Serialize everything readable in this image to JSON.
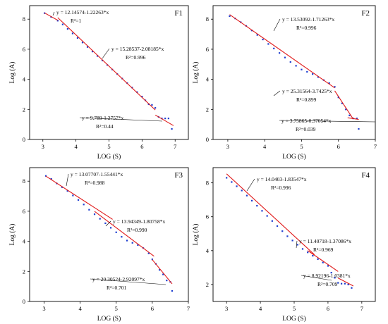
{
  "chart_data": [
    {
      "type": "scatter",
      "panel_label": "F1",
      "xlabel": "LOG (S)",
      "ylabel": "Log (A)",
      "xlim": [
        2.6,
        7.4
      ],
      "ylim": [
        0,
        8.9
      ],
      "xticks": [
        3,
        4,
        5,
        6,
        7
      ],
      "yticks": [
        0,
        2,
        4,
        6,
        8
      ],
      "series": [
        {
          "x": [
            3.05,
            3.25,
            3.45,
            3.6,
            3.75,
            3.9,
            4.05,
            4.2,
            4.35,
            4.5,
            4.65,
            4.8,
            4.95,
            5.1,
            5.25,
            5.4,
            5.55,
            5.7,
            5.85,
            6.0,
            6.1,
            6.2,
            6.3,
            6.4,
            6.5,
            6.6,
            6.7,
            6.8,
            6.9
          ],
          "y": [
            8.4,
            8.15,
            7.9,
            7.65,
            7.35,
            7.05,
            6.75,
            6.45,
            6.15,
            5.85,
            5.55,
            5.25,
            4.95,
            4.65,
            4.35,
            4.05,
            3.75,
            3.45,
            3.15,
            2.85,
            2.6,
            2.35,
            2.3,
            2.1,
            1.5,
            1.4,
            1.4,
            1.4,
            0.7
          ]
        }
      ],
      "fits": [
        {
          "equation": "y = 12.14574-1.22263*x",
          "r2": "R²=1",
          "x_range": [
            3.05,
            3.45
          ]
        },
        {
          "equation": "y = 15.28537-2.08185*x",
          "r2": "R²=0.996",
          "x_range": [
            3.45,
            6.4
          ]
        },
        {
          "equation": "y = 9.789-1.2757*x",
          "r2": "R²=0.44",
          "x_range": [
            6.4,
            6.95
          ]
        }
      ]
    },
    {
      "type": "scatter",
      "panel_label": "F2",
      "xlabel": "LOG (S)",
      "ylabel": "Log (A)",
      "xlim": [
        2.6,
        7.0
      ],
      "ylim": [
        0,
        8.9
      ],
      "xticks": [
        3,
        4,
        5,
        6,
        7
      ],
      "yticks": [
        0,
        2,
        4,
        6,
        8
      ],
      "series": [
        {
          "x": [
            3.05,
            3.2,
            3.35,
            3.5,
            3.65,
            3.8,
            3.95,
            4.1,
            4.25,
            4.4,
            4.55,
            4.7,
            4.85,
            5.0,
            5.15,
            5.3,
            5.45,
            5.6,
            5.75,
            5.9,
            6.0,
            6.1,
            6.2,
            6.3,
            6.4,
            6.5,
            6.55
          ],
          "y": [
            8.2,
            8.05,
            7.8,
            7.55,
            7.25,
            6.95,
            6.65,
            6.35,
            6.05,
            5.75,
            5.45,
            5.15,
            4.9,
            4.65,
            4.5,
            4.35,
            4.15,
            3.95,
            3.75,
            3.5,
            2.8,
            2.4,
            2.0,
            1.6,
            1.4,
            1.4,
            0.7
          ]
        }
      ],
      "fits": [
        {
          "equation": "y = 13.53092-1.71263*x",
          "r2": "R²=0.996",
          "x_range": [
            3.05,
            5.9
          ]
        },
        {
          "equation": "y = 25.31564-3.7425*x",
          "r2": "R²=0.899",
          "x_range": [
            5.9,
            6.4
          ]
        },
        {
          "equation": "y = 3.75865-0.37054*x",
          "r2": "R²=0.039",
          "x_range": [
            6.25,
            6.55
          ]
        }
      ]
    },
    {
      "type": "scatter",
      "panel_label": "F3",
      "xlabel": "LOG (S)",
      "ylabel": "Log (A)",
      "xlim": [
        2.6,
        7.0
      ],
      "ylim": [
        0,
        8.9
      ],
      "xticks": [
        3,
        4,
        5,
        6,
        7
      ],
      "yticks": [
        0,
        2,
        4,
        6,
        8
      ],
      "series": [
        {
          "x": [
            3.05,
            3.2,
            3.35,
            3.5,
            3.65,
            3.8,
            3.95,
            4.1,
            4.25,
            4.4,
            4.55,
            4.7,
            4.85,
            5.0,
            5.15,
            5.3,
            5.45,
            5.6,
            5.75,
            5.9,
            6.0,
            6.1,
            6.2,
            6.3,
            6.4,
            6.5,
            6.55
          ],
          "y": [
            8.35,
            8.15,
            7.85,
            7.6,
            7.35,
            7.05,
            6.75,
            6.45,
            6.1,
            5.8,
            5.5,
            5.2,
            4.9,
            4.6,
            4.3,
            4.05,
            3.9,
            3.75,
            3.55,
            3.2,
            2.8,
            2.5,
            2.1,
            1.8,
            1.4,
            1.3,
            0.7
          ]
        }
      ],
      "fits": [
        {
          "equation": "y = 13.07707-1.55441*x",
          "r2": "R²=0.988",
          "x_range": [
            3.05,
            4.9
          ]
        },
        {
          "equation": "y = 13.94349-1.80758*x",
          "r2": "R²=0.990",
          "x_range": [
            4.4,
            6.05
          ]
        },
        {
          "equation": "y = 20.30524-2.92097*x",
          "r2": "R²=0.701",
          "x_range": [
            6.0,
            6.55
          ]
        }
      ]
    },
    {
      "type": "scatter",
      "panel_label": "F4",
      "xlabel": "LOG (S)",
      "ylabel": "Log (A)",
      "xlim": [
        2.6,
        7.4
      ],
      "ylim": [
        1.0,
        8.9
      ],
      "xticks": [
        3,
        4,
        5,
        6,
        7
      ],
      "yticks": [
        2,
        4,
        6,
        8
      ],
      "series": [
        {
          "x": [
            3.0,
            3.15,
            3.3,
            3.45,
            3.6,
            3.75,
            3.9,
            4.05,
            4.2,
            4.35,
            4.5,
            4.65,
            4.8,
            4.95,
            5.1,
            5.25,
            5.4,
            5.55,
            5.7,
            5.85,
            6.0,
            6.1,
            6.2,
            6.3,
            6.4,
            6.5,
            6.6,
            6.7
          ],
          "y": [
            8.3,
            8.05,
            7.8,
            7.55,
            7.25,
            6.95,
            6.65,
            6.35,
            6.05,
            5.75,
            5.45,
            5.15,
            4.85,
            4.6,
            4.35,
            4.1,
            3.9,
            3.7,
            3.5,
            3.3,
            3.1,
            2.7,
            2.4,
            2.1,
            2.05,
            2.05,
            2.0,
            1.8
          ]
        }
      ],
      "fits": [
        {
          "equation": "y = 14.0403-1.83547*x",
          "r2": "R²=0.996",
          "x_range": [
            3.0,
            5.6
          ]
        },
        {
          "equation": "y = 11.40718-1.37086*x",
          "r2": "R²=0.969",
          "x_range": [
            5.4,
            6.3
          ]
        },
        {
          "equation": "y = 8.92196-1.0381*x",
          "r2": "R²=0.709",
          "x_range": [
            6.3,
            6.75
          ]
        }
      ]
    }
  ]
}
